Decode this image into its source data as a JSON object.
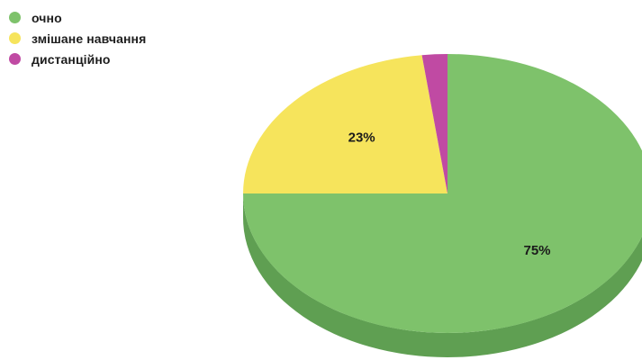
{
  "chart_data": {
    "type": "pie",
    "style": "3d",
    "slices": [
      {
        "label": "очно",
        "value": 75,
        "value_label": "75%",
        "color": "#7ec26b",
        "side_color": "#5f9f52"
      },
      {
        "label": "змішане навчання",
        "value": 23,
        "value_label": "23%",
        "color": "#f6e45c",
        "side_color": "#d4c446"
      },
      {
        "label": "дистанційно",
        "value": 2,
        "value_label": "",
        "color": "#c04aa3",
        "side_color": "#993b82"
      }
    ],
    "legend_position": "top-left"
  }
}
